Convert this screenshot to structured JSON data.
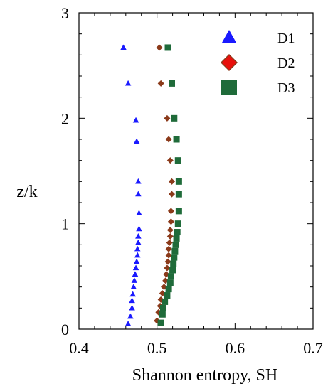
{
  "chart_data": {
    "type": "scatter",
    "xlabel": "Shannon entropy, SH",
    "ylabel": "z/k",
    "xlim": [
      0.4,
      0.7
    ],
    "ylim": [
      0,
      3
    ],
    "xticks": [
      0.4,
      0.5,
      0.6,
      0.7
    ],
    "xtick_labels": [
      "0.4",
      "0.5",
      "0.6",
      "0.7"
    ],
    "yticks": [
      0,
      1,
      2,
      3
    ],
    "ytick_labels": [
      "0",
      "1",
      "2",
      "3"
    ],
    "legend_position": "top-right",
    "grid": false,
    "series": [
      {
        "name": "D1",
        "marker": "triangle",
        "color": "#1a1aff",
        "points": [
          [
            0.463,
            0.05
          ],
          [
            0.466,
            0.12
          ],
          [
            0.468,
            0.2
          ],
          [
            0.468,
            0.27
          ],
          [
            0.469,
            0.33
          ],
          [
            0.47,
            0.4
          ],
          [
            0.471,
            0.46
          ],
          [
            0.472,
            0.52
          ],
          [
            0.473,
            0.58
          ],
          [
            0.474,
            0.64
          ],
          [
            0.475,
            0.7
          ],
          [
            0.475,
            0.76
          ],
          [
            0.476,
            0.82
          ],
          [
            0.476,
            0.88
          ],
          [
            0.477,
            0.95
          ],
          [
            0.477,
            1.1
          ],
          [
            0.476,
            1.28
          ],
          [
            0.476,
            1.4
          ],
          [
            0.474,
            1.78
          ],
          [
            0.473,
            1.98
          ],
          [
            0.463,
            2.33
          ],
          [
            0.457,
            2.67
          ]
        ]
      },
      {
        "name": "D2",
        "marker": "diamond",
        "color": "#8b3a1a",
        "points": [
          [
            0.5,
            0.08
          ],
          [
            0.502,
            0.16
          ],
          [
            0.504,
            0.22
          ],
          [
            0.505,
            0.28
          ],
          [
            0.507,
            0.34
          ],
          [
            0.509,
            0.4
          ],
          [
            0.511,
            0.46
          ],
          [
            0.512,
            0.52
          ],
          [
            0.513,
            0.58
          ],
          [
            0.514,
            0.64
          ],
          [
            0.515,
            0.7
          ],
          [
            0.515,
            0.76
          ],
          [
            0.516,
            0.82
          ],
          [
            0.517,
            0.88
          ],
          [
            0.517,
            0.94
          ],
          [
            0.518,
            1.02
          ],
          [
            0.518,
            1.12
          ],
          [
            0.519,
            1.28
          ],
          [
            0.519,
            1.4
          ],
          [
            0.517,
            1.6
          ],
          [
            0.515,
            1.8
          ],
          [
            0.513,
            2.0
          ],
          [
            0.505,
            2.33
          ],
          [
            0.503,
            2.67
          ]
        ]
      },
      {
        "name": "D3",
        "marker": "square",
        "color": "#1f6b3a",
        "points": [
          [
            0.505,
            0.06
          ],
          [
            0.507,
            0.14
          ],
          [
            0.508,
            0.2
          ],
          [
            0.51,
            0.26
          ],
          [
            0.513,
            0.32
          ],
          [
            0.515,
            0.38
          ],
          [
            0.517,
            0.44
          ],
          [
            0.518,
            0.5
          ],
          [
            0.52,
            0.56
          ],
          [
            0.521,
            0.62
          ],
          [
            0.522,
            0.68
          ],
          [
            0.523,
            0.74
          ],
          [
            0.524,
            0.8
          ],
          [
            0.525,
            0.86
          ],
          [
            0.526,
            0.92
          ],
          [
            0.527,
            1.0
          ],
          [
            0.528,
            1.12
          ],
          [
            0.528,
            1.28
          ],
          [
            0.528,
            1.4
          ],
          [
            0.527,
            1.6
          ],
          [
            0.525,
            1.8
          ],
          [
            0.522,
            2.0
          ],
          [
            0.519,
            2.33
          ],
          [
            0.514,
            2.67
          ]
        ]
      }
    ]
  }
}
